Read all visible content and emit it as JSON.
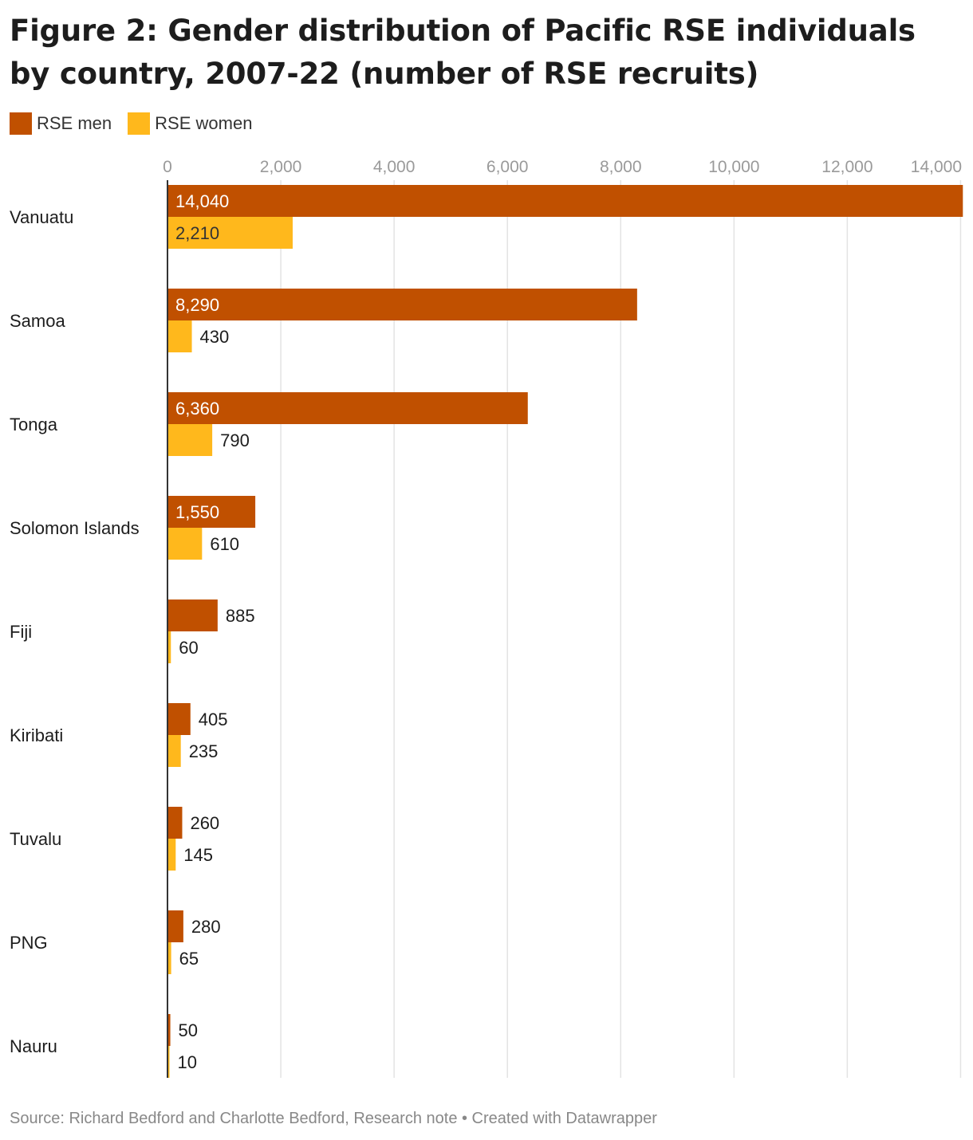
{
  "chart_data": {
    "type": "bar",
    "orientation": "horizontal",
    "title": "Figure 2: Gender distribution of Pacific RSE individuals by country, 2007-22 (number of RSE recruits)",
    "categories": [
      "Vanuatu",
      "Samoa",
      "Tonga",
      "Solomon Islands",
      "Fiji",
      "Kiribati",
      "Tuvalu",
      "PNG",
      "Nauru"
    ],
    "series": [
      {
        "name": "RSE men",
        "color": "#c05000",
        "values": [
          14040,
          8290,
          6360,
          1550,
          885,
          405,
          260,
          280,
          50
        ],
        "labels": [
          "14,040",
          "8,290",
          "6,360",
          "1,550",
          "885",
          "405",
          "260",
          "280",
          "50"
        ]
      },
      {
        "name": "RSE women",
        "color": "#ffb81c",
        "values": [
          2210,
          430,
          790,
          610,
          60,
          235,
          145,
          65,
          10
        ],
        "labels": [
          "2,210",
          "430",
          "790",
          "610",
          "60",
          "235",
          "145",
          "65",
          "10"
        ]
      }
    ],
    "xlim": [
      0,
      14050
    ],
    "x_ticks": [
      0,
      2000,
      4000,
      6000,
      8000,
      10000,
      12000,
      14000
    ],
    "x_tick_labels": [
      "0",
      "2,000",
      "4,000",
      "6,000",
      "8,000",
      "10,000",
      "12,000",
      "14,000"
    ],
    "grid": true,
    "legend_position": "top-left",
    "source": "Source: Richard Bedford and Charlotte Bedford, Research note • Created with Datawrapper"
  }
}
